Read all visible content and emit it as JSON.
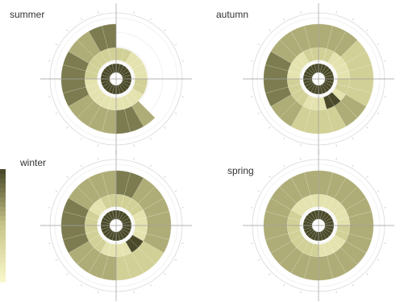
{
  "chart_data": [
    {
      "type": "heatmap",
      "subtype": "polar",
      "title": "summer",
      "angular_bins": 24,
      "radial_bins": 3,
      "rows": [
        [
          5,
          5,
          4,
          4,
          3,
          3,
          3,
          3,
          4,
          4,
          5,
          5,
          4,
          4,
          4,
          4,
          5,
          5,
          5,
          5,
          4,
          4,
          5,
          5
        ],
        [
          3,
          3,
          2,
          2,
          2,
          2,
          3,
          3,
          2,
          2,
          2,
          2,
          2,
          2,
          2,
          2,
          2,
          2,
          3,
          3,
          3,
          3,
          3,
          3
        ],
        [
          1,
          1,
          1,
          1,
          1,
          1,
          1,
          1,
          1,
          1,
          1,
          1,
          1,
          1,
          1,
          1,
          1,
          1,
          1,
          1,
          1,
          1,
          1,
          1
        ]
      ],
      "outer_extent": [
        2,
        2,
        2,
        2,
        2,
        2,
        2,
        2,
        2,
        3,
        3,
        3,
        3,
        3,
        3,
        3,
        3,
        3,
        3,
        3,
        3,
        3,
        3,
        3
      ]
    },
    {
      "type": "heatmap",
      "subtype": "polar",
      "title": "autumn",
      "angular_bins": 24,
      "radial_bins": 3,
      "rows": [
        [
          4,
          4,
          4,
          3,
          3,
          3,
          3,
          3,
          4,
          4,
          3,
          3,
          3,
          3,
          4,
          4,
          5,
          5,
          5,
          5,
          4,
          4,
          4,
          4
        ],
        [
          3,
          3,
          2,
          2,
          2,
          2,
          3,
          3,
          2,
          1,
          1,
          2,
          2,
          2,
          3,
          3,
          3,
          3,
          2,
          2,
          2,
          2,
          3,
          3
        ],
        [
          1,
          1,
          1,
          1,
          1,
          1,
          1,
          1,
          1,
          1,
          1,
          1,
          1,
          1,
          1,
          1,
          1,
          1,
          1,
          1,
          1,
          1,
          1,
          1
        ]
      ],
      "outer_extent": [
        3,
        3,
        3,
        3,
        3,
        3,
        3,
        3,
        3,
        3,
        3,
        3,
        3,
        3,
        3,
        3,
        3,
        3,
        3,
        3,
        3,
        3,
        3,
        3
      ]
    },
    {
      "type": "heatmap",
      "subtype": "polar",
      "title": "winter",
      "angular_bins": 24,
      "radial_bins": 3,
      "rows": [
        [
          5,
          5,
          4,
          4,
          4,
          4,
          4,
          4,
          3,
          3,
          3,
          3,
          4,
          4,
          4,
          4,
          5,
          5,
          5,
          5,
          4,
          4,
          4,
          4
        ],
        [
          3,
          3,
          3,
          3,
          2,
          2,
          2,
          2,
          1,
          1,
          2,
          2,
          2,
          2,
          3,
          3,
          3,
          3,
          3,
          3,
          2,
          2,
          3,
          3
        ],
        [
          1,
          1,
          1,
          1,
          1,
          1,
          1,
          1,
          1,
          1,
          1,
          1,
          1,
          1,
          1,
          1,
          1,
          1,
          1,
          1,
          1,
          1,
          1,
          1
        ]
      ],
      "outer_extent": [
        3,
        3,
        3,
        3,
        3,
        3,
        3,
        3,
        3,
        3,
        3,
        3,
        3,
        3,
        3,
        3,
        3,
        3,
        3,
        3,
        3,
        3,
        3,
        3
      ]
    },
    {
      "type": "heatmap",
      "subtype": "polar",
      "title": "spring",
      "angular_bins": 24,
      "radial_bins": 3,
      "rows": [
        [
          4,
          4,
          4,
          4,
          4,
          4,
          4,
          4,
          4,
          4,
          4,
          4,
          4,
          4,
          4,
          4,
          4,
          4,
          4,
          4,
          4,
          4,
          4,
          4
        ],
        [
          2,
          2,
          2,
          2,
          2,
          2,
          3,
          3,
          2,
          2,
          2,
          2,
          3,
          3,
          3,
          3,
          3,
          3,
          3,
          3,
          2,
          2,
          2,
          2
        ],
        [
          1,
          1,
          1,
          1,
          1,
          1,
          1,
          1,
          1,
          1,
          1,
          1,
          1,
          1,
          1,
          1,
          1,
          1,
          1,
          1,
          1,
          1,
          1,
          1
        ]
      ],
      "outer_extent": [
        3,
        3,
        3,
        3,
        3,
        3,
        3,
        3,
        3,
        3,
        3,
        3,
        3,
        3,
        3,
        3,
        3,
        3,
        3,
        3,
        3,
        3,
        3,
        3
      ]
    }
  ],
  "colorscale": {
    "low": "#f7f6c8",
    "mid": "#c8c68a",
    "high": "#4a4a2a",
    "levels": 6
  },
  "grid": true
}
